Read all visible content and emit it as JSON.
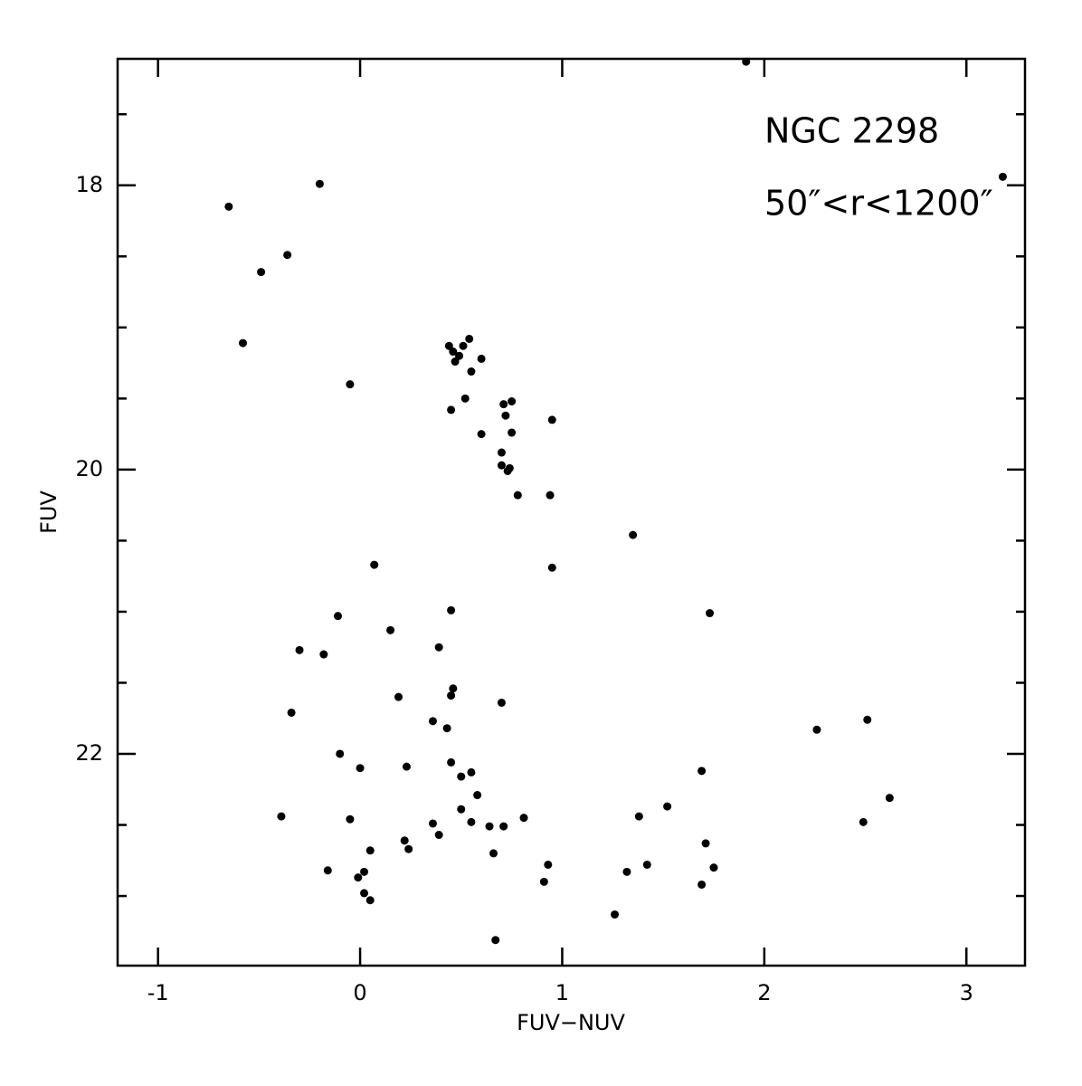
{
  "chart_data": {
    "type": "scatter",
    "x_label": "FUV−NUV",
    "y_label": "FUV",
    "annotations": [
      "NGC 2298",
      "50″<r<1200″"
    ],
    "color": "#000000",
    "xlim": [
      -1.2,
      3.29
    ],
    "ylim": [
      23.49,
      17.11
    ],
    "xticks": [
      -1,
      0,
      1,
      2,
      3
    ],
    "yticks": [
      18,
      20,
      22
    ],
    "yminorticks": [
      17.5,
      18.5,
      19,
      19.5,
      20.5,
      21,
      21.5,
      22.5,
      23
    ],
    "x": [
      1.91,
      3.18,
      -0.65,
      -0.2,
      -0.36,
      -0.49,
      -0.58,
      -0.05,
      0.44,
      0.54,
      0.51,
      0.46,
      0.49,
      0.47,
      0.6,
      0.55,
      0.52,
      0.75,
      0.71,
      0.45,
      0.72,
      0.95,
      0.75,
      0.6,
      0.7,
      0.7,
      0.74,
      0.73,
      0.78,
      0.94,
      1.35,
      0.95,
      0.07,
      0.45,
      1.73,
      -0.11,
      0.15,
      0.39,
      -0.3,
      -0.18,
      0.46,
      0.45,
      0.19,
      0.7,
      -0.34,
      0.36,
      0.43,
      2.26,
      2.51,
      -0.1,
      0.45,
      0.0,
      0.23,
      0.55,
      0.5,
      1.69,
      0.58,
      2.62,
      1.52,
      0.5,
      -0.39,
      -0.05,
      0.81,
      1.38,
      2.49,
      0.36,
      0.55,
      0.64,
      0.71,
      0.39,
      0.22,
      0.24,
      0.05,
      0.66,
      1.71,
      -0.16,
      0.93,
      1.42,
      1.32,
      1.75,
      0.02,
      -0.01,
      0.91,
      1.69,
      0.02,
      0.05,
      1.26,
      0.67
    ],
    "values": [
      17.13,
      17.94,
      18.15,
      17.99,
      18.49,
      18.61,
      19.11,
      19.4,
      19.13,
      19.08,
      19.13,
      19.17,
      19.2,
      19.24,
      19.22,
      19.31,
      19.5,
      19.52,
      19.54,
      19.58,
      19.62,
      19.65,
      19.74,
      19.75,
      19.88,
      19.97,
      19.99,
      20.01,
      20.18,
      20.18,
      20.46,
      20.69,
      20.67,
      20.99,
      21.01,
      21.03,
      21.13,
      21.25,
      21.27,
      21.3,
      21.54,
      21.59,
      21.6,
      21.64,
      21.71,
      21.77,
      21.82,
      21.83,
      21.76,
      22.0,
      22.06,
      22.1,
      22.09,
      22.13,
      22.16,
      22.12,
      22.29,
      22.31,
      22.37,
      22.39,
      22.44,
      22.46,
      22.45,
      22.44,
      22.48,
      22.49,
      22.48,
      22.51,
      22.51,
      22.57,
      22.61,
      22.67,
      22.68,
      22.7,
      22.63,
      22.82,
      22.78,
      22.78,
      22.83,
      22.8,
      22.83,
      22.87,
      22.9,
      22.92,
      22.98,
      23.03,
      23.13,
      23.31
    ]
  }
}
